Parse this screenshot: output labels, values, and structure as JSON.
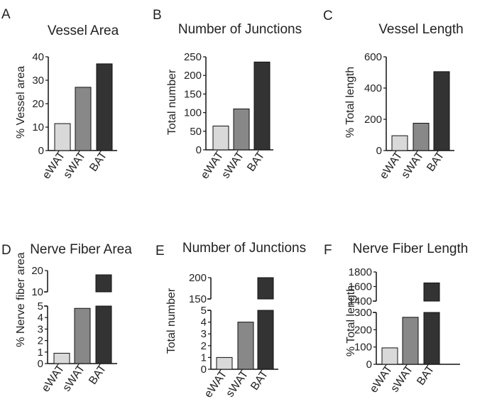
{
  "chart_data": [
    {
      "panel": "A",
      "type": "bar",
      "title": "Vessel Area",
      "ylabel": "% Vessel area",
      "categories": [
        "eWAT",
        "sWAT",
        "BAT"
      ],
      "values": [
        11.5,
        27,
        37
      ],
      "ylim": [
        0,
        40
      ],
      "yticks": [
        "0",
        "10",
        "20",
        "30",
        "40"
      ],
      "colors": [
        "#d9d9d9",
        "#888888",
        "#333333"
      ]
    },
    {
      "panel": "B",
      "type": "bar",
      "title": "Number of Junctions",
      "ylabel": "Total number",
      "categories": [
        "eWAT",
        "sWAT",
        "BAT"
      ],
      "values": [
        64,
        110,
        236
      ],
      "ylim": [
        0,
        250
      ],
      "yticks": [
        "0",
        "50",
        "100",
        "150",
        "200",
        "250"
      ],
      "colors": [
        "#d9d9d9",
        "#888888",
        "#333333"
      ]
    },
    {
      "panel": "C",
      "type": "bar",
      "title": "Vessel Length",
      "ylabel": "% Total length",
      "categories": [
        "eWAT",
        "sWAT",
        "BAT"
      ],
      "values": [
        95,
        175,
        505
      ],
      "ylim": [
        0,
        600
      ],
      "yticks": [
        "0",
        "200",
        "400",
        "600"
      ],
      "colors": [
        "#d9d9d9",
        "#888888",
        "#333333"
      ]
    },
    {
      "panel": "D",
      "type": "bar",
      "title": "Nerve Fiber Area",
      "ylabel": "% Nerve fiber area",
      "categories": [
        "eWAT",
        "sWAT",
        "BAT"
      ],
      "values": [
        0.9,
        4.8,
        18
      ],
      "ylim": [
        0,
        20
      ],
      "axis_break": true,
      "lower_ylim": [
        0,
        5
      ],
      "upper_ylim": [
        10,
        20
      ],
      "yticks_lower": [
        "0",
        "1",
        "2",
        "3",
        "4",
        "5"
      ],
      "yticks_upper": [
        "10",
        "20"
      ],
      "colors": [
        "#d9d9d9",
        "#888888",
        "#333333"
      ]
    },
    {
      "panel": "E",
      "type": "bar",
      "title": "Number of Junctions",
      "ylabel": "Total number",
      "categories": [
        "eWAT",
        "sWAT",
        "BAT"
      ],
      "values": [
        1,
        4,
        200
      ],
      "ylim": [
        0,
        200
      ],
      "axis_break": true,
      "lower_ylim": [
        0,
        5
      ],
      "upper_ylim": [
        150,
        200
      ],
      "yticks_lower": [
        "0",
        "1",
        "2",
        "3",
        "4",
        "5"
      ],
      "yticks_upper": [
        "150",
        "200"
      ],
      "colors": [
        "#d9d9d9",
        "#888888",
        "#333333"
      ]
    },
    {
      "panel": "F",
      "type": "bar",
      "title": "Nerve Fiber Length",
      "ylabel": "% Total length",
      "categories": [
        "eWAT",
        "sWAT",
        "BAT"
      ],
      "values": [
        95,
        272,
        1650
      ],
      "ylim": [
        0,
        1800
      ],
      "axis_break": true,
      "lower_ylim": [
        0,
        300
      ],
      "upper_ylim": [
        1400,
        1800
      ],
      "yticks_lower": [
        "0",
        "100",
        "200",
        "300"
      ],
      "yticks_upper": [
        "1400",
        "1600",
        "1800"
      ],
      "colors": [
        "#d9d9d9",
        "#888888",
        "#333333"
      ]
    }
  ]
}
